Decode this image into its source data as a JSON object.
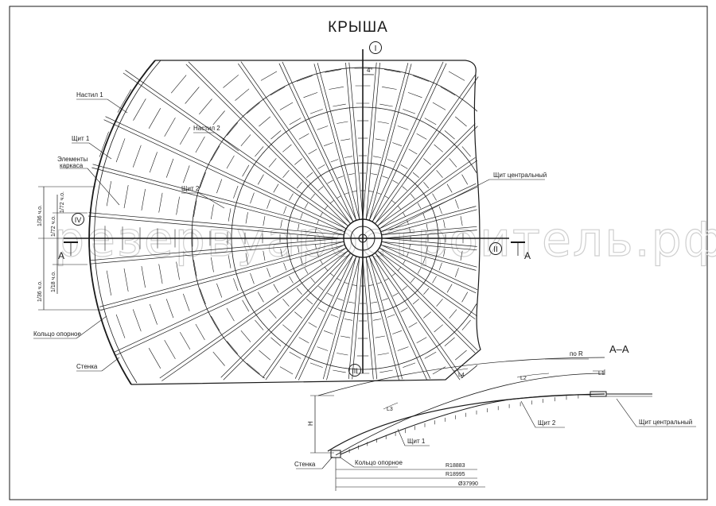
{
  "title": "КРЫША",
  "watermark": "резервуаростроитель.рф",
  "plan": {
    "axis_marks": {
      "top": "I",
      "right": "II",
      "bottom": "III",
      "left": "IV"
    },
    "angle_mark": "4°",
    "section_marker": "A",
    "labels": {
      "nastil1": "Настил 1",
      "nastil2": "Настил 2",
      "shchit1": "Щит 1",
      "shchit2": "Щит 2",
      "elementy1": "Элементы",
      "elementy2": "каркаса",
      "shchit_central": "Щит центральный",
      "koltso": "Кольцо опорное",
      "stenka": "Стенка"
    },
    "dims": [
      "1/36 ч.о.",
      "1/72 ч.о.",
      "1/72 ч.о.",
      "1/36 ч.о.",
      "1/18 ч.о."
    ]
  },
  "section": {
    "title": "А–А",
    "labels": {
      "po_r": "по R",
      "l1": "L1",
      "l2": "L2",
      "l3": "L3",
      "l4": "L4",
      "h": "H",
      "shchit1": "Щит 1",
      "shchit2": "Щит 2",
      "shchit_central": "Щит центральный",
      "stenka": "Стенка",
      "koltso": "Кольцо опорное"
    },
    "dims": {
      "r1": "R18883",
      "r2": "R18995",
      "d": "Ø37990"
    }
  },
  "colors": {
    "line": "#1a1a1a",
    "watermark": "#cfcfcf"
  }
}
